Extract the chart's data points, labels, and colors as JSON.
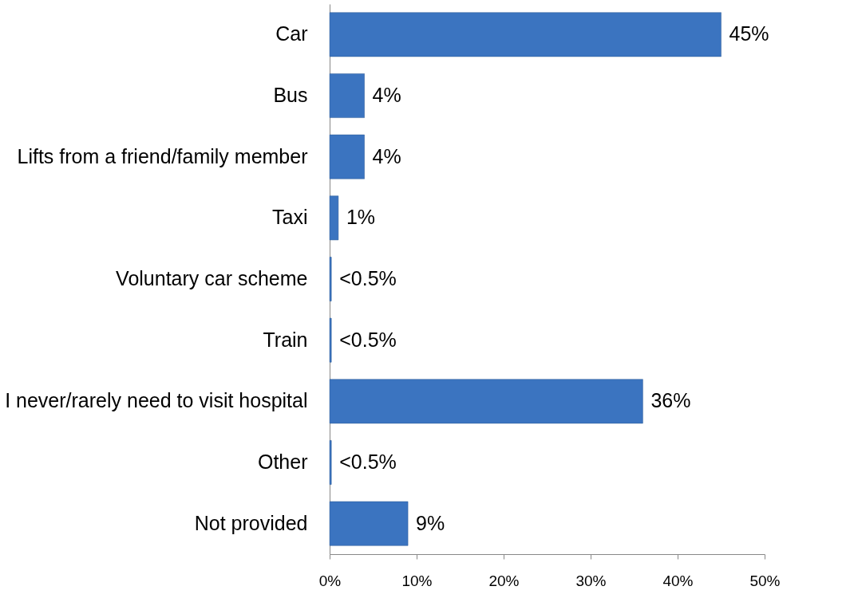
{
  "chart_data": {
    "type": "bar",
    "orientation": "horizontal",
    "categories": [
      "Car",
      "Bus",
      "Lifts from a friend/family member",
      "Taxi",
      "Voluntary car scheme",
      "Train",
      "I never/rarely need to visit hospital",
      "Other",
      "Not provided"
    ],
    "values": [
      45,
      4,
      4,
      1,
      0.2,
      0.2,
      36,
      0.2,
      9
    ],
    "value_labels": [
      "45%",
      "4%",
      "4%",
      "1%",
      "<0.5%",
      "<0.5%",
      "36%",
      "<0.5%",
      "9%"
    ],
    "color": "#3b74c0",
    "xlim": [
      0,
      50
    ],
    "xticks": [
      {
        "value": 0,
        "label": "0%"
      },
      {
        "value": 10,
        "label": "10%"
      },
      {
        "value": 20,
        "label": "20%"
      },
      {
        "value": 30,
        "label": "30%"
      },
      {
        "value": 40,
        "label": "40%"
      },
      {
        "value": 50,
        "label": "50%"
      }
    ],
    "grid": false
  }
}
